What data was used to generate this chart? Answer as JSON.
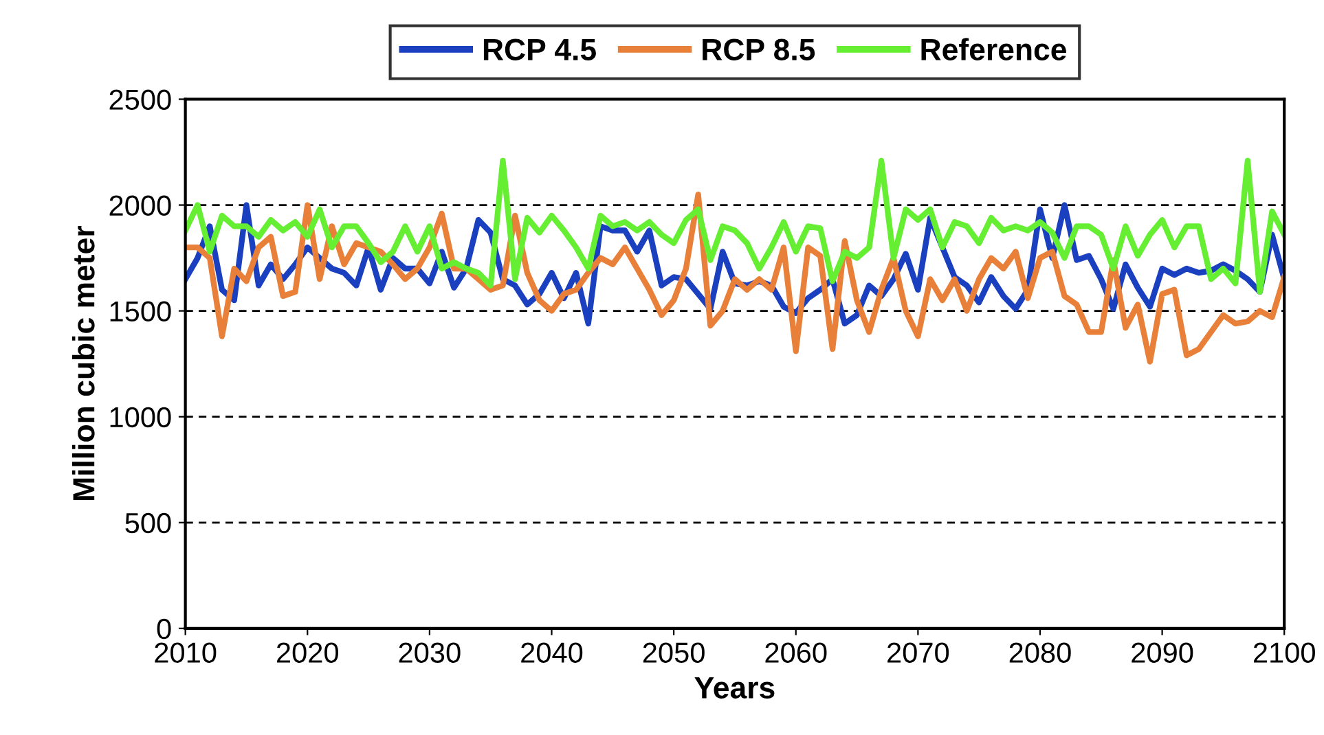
{
  "chart_data": {
    "type": "line",
    "xlabel": "Years",
    "ylabel": "Million cubic meter",
    "x": [
      2010,
      2011,
      2012,
      2013,
      2014,
      2015,
      2016,
      2017,
      2018,
      2019,
      2020,
      2021,
      2022,
      2023,
      2024,
      2025,
      2026,
      2027,
      2028,
      2029,
      2030,
      2031,
      2032,
      2033,
      2034,
      2035,
      2036,
      2037,
      2038,
      2039,
      2040,
      2041,
      2042,
      2043,
      2044,
      2045,
      2046,
      2047,
      2048,
      2049,
      2050,
      2051,
      2052,
      2053,
      2054,
      2055,
      2056,
      2057,
      2058,
      2059,
      2060,
      2061,
      2062,
      2063,
      2064,
      2065,
      2066,
      2067,
      2068,
      2069,
      2070,
      2071,
      2072,
      2073,
      2074,
      2075,
      2076,
      2077,
      2078,
      2079,
      2080,
      2081,
      2082,
      2083,
      2084,
      2085,
      2086,
      2087,
      2088,
      2089,
      2090,
      2091,
      2092,
      2093,
      2094,
      2095,
      2096,
      2097,
      2098,
      2099,
      2100
    ],
    "series": [
      {
        "name": "RCP 4.5",
        "color": "#1a3fbf",
        "values": [
          1650,
          1750,
          1900,
          1600,
          1550,
          2000,
          1620,
          1720,
          1650,
          1720,
          1800,
          1750,
          1700,
          1680,
          1620,
          1800,
          1600,
          1750,
          1700,
          1700,
          1630,
          1780,
          1610,
          1700,
          1930,
          1870,
          1650,
          1620,
          1530,
          1580,
          1680,
          1560,
          1680,
          1440,
          1900,
          1880,
          1880,
          1780,
          1880,
          1620,
          1660,
          1650,
          1580,
          1510,
          1780,
          1630,
          1620,
          1640,
          1620,
          1520,
          1490,
          1560,
          1600,
          1650,
          1440,
          1480,
          1620,
          1570,
          1650,
          1770,
          1600,
          1940,
          1800,
          1660,
          1620,
          1540,
          1660,
          1570,
          1510,
          1600,
          1980,
          1750,
          2000,
          1740,
          1760,
          1650,
          1510,
          1720,
          1610,
          1520,
          1700,
          1670,
          1700,
          1680,
          1690,
          1720,
          1690,
          1650,
          1590,
          1860,
          1650
        ]
      },
      {
        "name": "RCP 8.5",
        "color": "#e8803a",
        "values": [
          1800,
          1800,
          1750,
          1380,
          1700,
          1640,
          1800,
          1850,
          1570,
          1590,
          2000,
          1650,
          1900,
          1720,
          1820,
          1800,
          1780,
          1720,
          1650,
          1700,
          1800,
          1960,
          1700,
          1700,
          1650,
          1600,
          1620,
          1950,
          1680,
          1550,
          1500,
          1580,
          1600,
          1680,
          1750,
          1720,
          1800,
          1700,
          1600,
          1480,
          1550,
          1700,
          2050,
          1430,
          1500,
          1650,
          1600,
          1650,
          1600,
          1800,
          1310,
          1800,
          1760,
          1320,
          1830,
          1550,
          1400,
          1600,
          1750,
          1500,
          1380,
          1650,
          1550,
          1650,
          1500,
          1650,
          1750,
          1700,
          1780,
          1560,
          1750,
          1780,
          1570,
          1530,
          1400,
          1400,
          1740,
          1420,
          1530,
          1260,
          1580,
          1600,
          1290,
          1320,
          1400,
          1480,
          1440,
          1450,
          1500,
          1470,
          1660
        ]
      },
      {
        "name": "Reference",
        "color": "#66ee33",
        "values": [
          1880,
          2000,
          1780,
          1950,
          1900,
          1900,
          1850,
          1930,
          1880,
          1920,
          1850,
          1980,
          1800,
          1900,
          1900,
          1820,
          1730,
          1780,
          1900,
          1780,
          1900,
          1700,
          1730,
          1700,
          1680,
          1620,
          2210,
          1650,
          1940,
          1870,
          1950,
          1880,
          1800,
          1700,
          1950,
          1900,
          1920,
          1880,
          1920,
          1860,
          1820,
          1930,
          1980,
          1740,
          1900,
          1880,
          1820,
          1700,
          1800,
          1920,
          1780,
          1900,
          1890,
          1640,
          1780,
          1750,
          1800,
          2210,
          1750,
          1980,
          1930,
          1980,
          1800,
          1920,
          1900,
          1820,
          1940,
          1880,
          1900,
          1880,
          1920,
          1870,
          1750,
          1900,
          1900,
          1860,
          1700,
          1900,
          1760,
          1860,
          1930,
          1800,
          1900,
          1900,
          1650,
          1700,
          1630,
          2210,
          1590,
          1970,
          1860
        ]
      }
    ],
    "xlim": [
      2010,
      2100
    ],
    "xticks": [
      2010,
      2020,
      2030,
      2040,
      2050,
      2060,
      2070,
      2080,
      2090,
      2100
    ],
    "ylim": [
      0,
      2500
    ],
    "yticks": [
      0,
      500,
      1000,
      1500,
      2000,
      2500
    ],
    "grid": "y",
    "legend": "top",
    "marker": "none",
    "line_style": "solid"
  }
}
